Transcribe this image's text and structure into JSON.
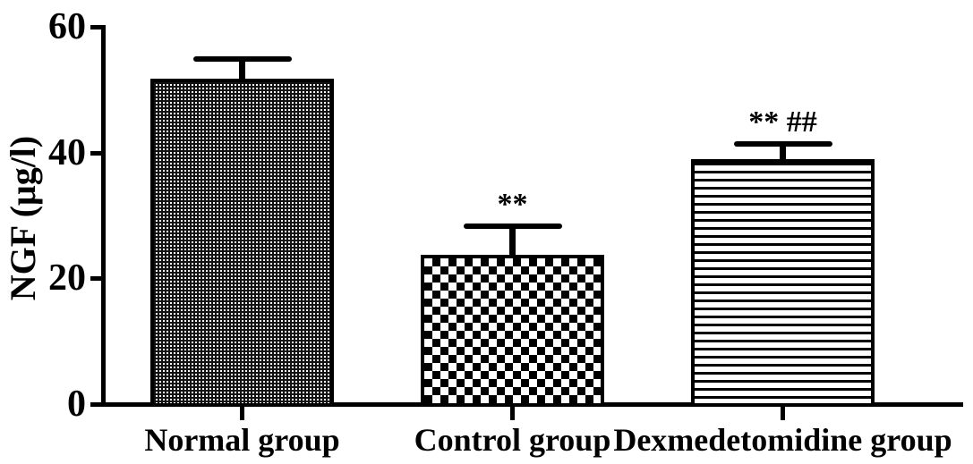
{
  "chart_data": {
    "type": "bar",
    "title": "",
    "xlabel": "",
    "ylabel": "NGF (μg/l)",
    "ylim": [
      0,
      60
    ],
    "yticks": [
      0,
      20,
      40,
      60
    ],
    "grid": false,
    "legend": "none",
    "categories": [
      "Normal group",
      "Control group",
      "Dexmedetomidine group"
    ],
    "values": [
      51.8,
      23.7,
      39.0
    ],
    "errors_plus": [
      3.1,
      4.6,
      2.4
    ],
    "significance_labels": [
      "",
      "**",
      "** ##"
    ],
    "bar_patterns": [
      "fine-dot-grid",
      "checkerboard",
      "horizontal-lines"
    ],
    "bar_outline_color": "#000000",
    "pattern_color": "#000000",
    "background_color": "#ffffff"
  }
}
